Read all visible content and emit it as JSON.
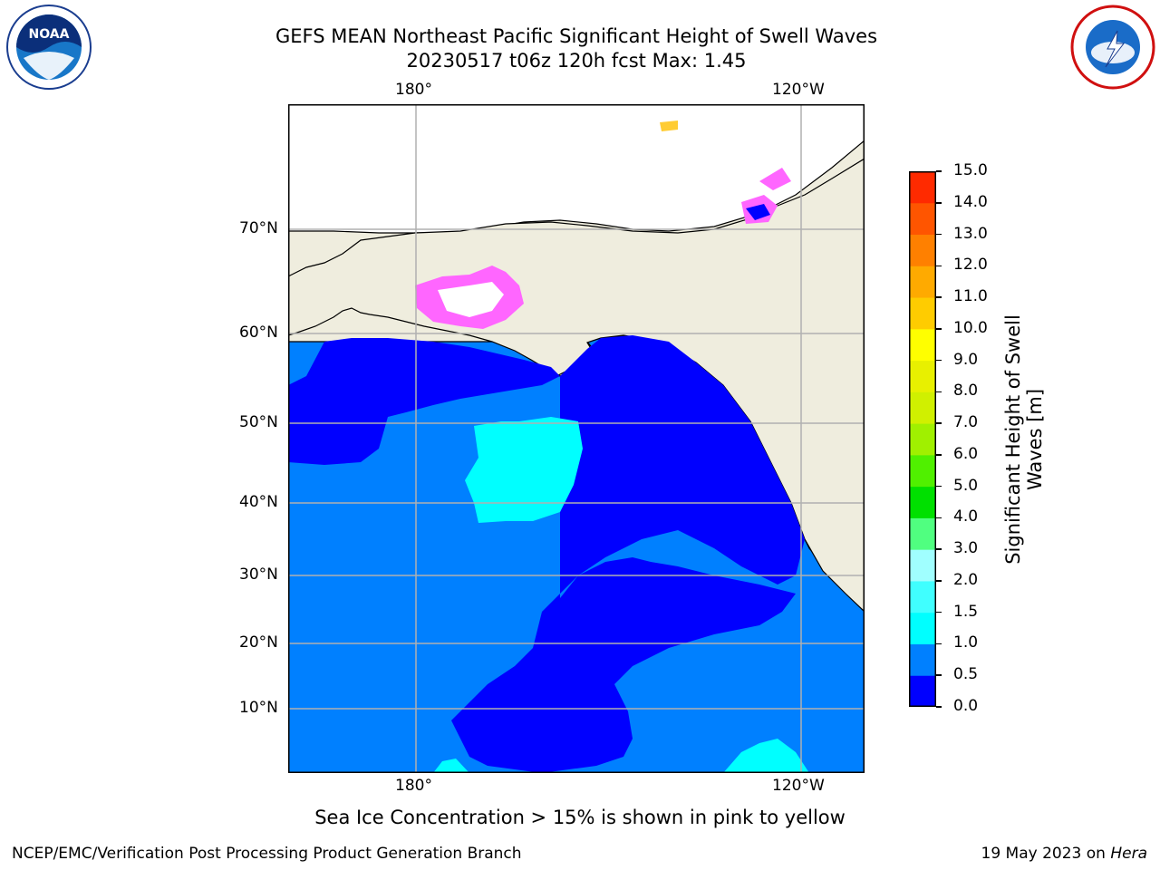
{
  "title": {
    "line1": "GEFS MEAN Northeast Pacific Significant Height of Swell Waves",
    "line2": "20230517 t06z 120h fcst   Max: 1.45"
  },
  "map": {
    "lon_labels_top": [
      "180°",
      "120°W"
    ],
    "lon_labels_bottom": [
      "180°",
      "120°W"
    ],
    "lat_labels": [
      "70°N",
      "60°N",
      "50°N",
      "40°N",
      "30°N",
      "20°N",
      "10°N"
    ],
    "colors": {
      "land": "#efedde",
      "swell_0_05": "#0000ff",
      "swell_05_10": "#0080ff",
      "swell_10_15": "#00ffff",
      "ice_pink": "#ff66ff",
      "ice_yellow": "#ffcc33",
      "grid": "#b0b0b0"
    }
  },
  "colorbar": {
    "ticks": [
      "15.0",
      "14.0",
      "13.0",
      "12.0",
      "11.0",
      "10.0",
      "9.0",
      "8.0",
      "7.0",
      "6.0",
      "5.0",
      "4.0",
      "3.0",
      "2.0",
      "1.5",
      "1.0",
      "0.5",
      "0.0"
    ],
    "colors_bottom_to_top": [
      "#0000ff",
      "#0080ff",
      "#00ffff",
      "#40ffff",
      "#80ffff",
      "#a0ffff",
      "#50ff80",
      "#00e000",
      "#50f000",
      "#a0f000",
      "#d0f000",
      "#e8f000",
      "#ffff00",
      "#ffcc00",
      "#ffaa00",
      "#ff8000",
      "#ff5500",
      "#ff2a00",
      "#ff0000"
    ],
    "label_line1": "Significant Height of Swell",
    "label_line2": "Waves [m]"
  },
  "caption": "Sea Ice Concentration > 15% is shown in pink to yellow",
  "footer": {
    "left": "NCEP/EMC/Verification Post Processing Product Generation Branch",
    "right_date": "19 May 2023 on ",
    "right_host": "Hera"
  },
  "logos": {
    "left": "noaa-logo",
    "right": "nws-logo"
  }
}
